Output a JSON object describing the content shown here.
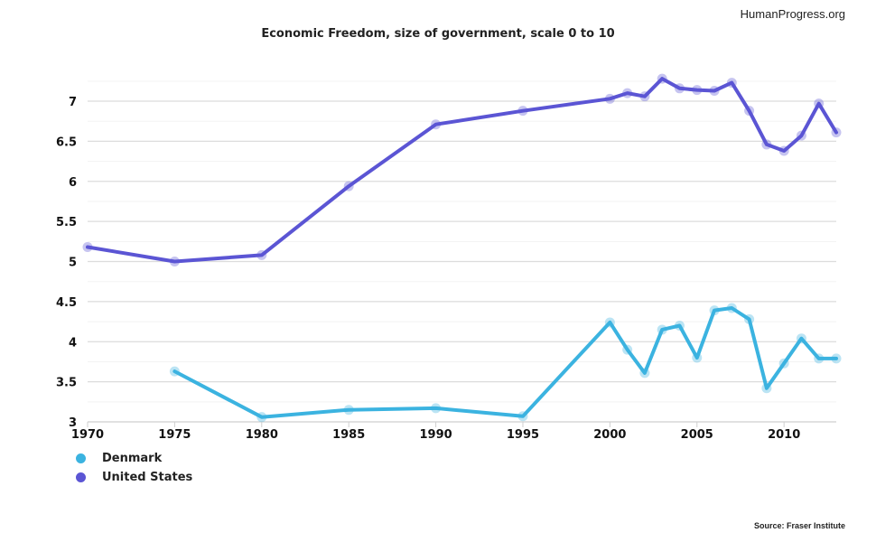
{
  "header": {
    "brand": "HumanProgress.org"
  },
  "footer": {
    "source": "Source: Fraser Institute"
  },
  "chart_data": {
    "type": "line",
    "title": "Economic Freedom, size of government, scale 0 to 10",
    "xlabel": "",
    "ylabel": "",
    "xlim": [
      1970,
      2013
    ],
    "ylim": [
      3,
      7.35
    ],
    "x_ticks": [
      "1970",
      "1975",
      "1980",
      "1985",
      "1990",
      "1995",
      "2000",
      "2005",
      "2010"
    ],
    "y_ticks": [
      "3",
      "3.5",
      "4",
      "4.5",
      "5",
      "5.5",
      "6",
      "6.5",
      "7"
    ],
    "grid": true,
    "legend_position": "bottom-left",
    "series": [
      {
        "name": "Denmark",
        "color": "#3bb3e0",
        "x": [
          1975,
          1980,
          1985,
          1990,
          1995,
          2000,
          2001,
          2002,
          2003,
          2004,
          2005,
          2006,
          2007,
          2008,
          2009,
          2010,
          2011,
          2012,
          2013
        ],
        "values": [
          3.63,
          3.06,
          3.15,
          3.17,
          3.07,
          4.24,
          3.9,
          3.61,
          4.15,
          4.2,
          3.8,
          4.39,
          4.42,
          4.28,
          3.42,
          3.73,
          4.04,
          3.79,
          3.79
        ]
      },
      {
        "name": "United States",
        "color": "#5b55d4",
        "x": [
          1970,
          1975,
          1980,
          1985,
          1990,
          1995,
          2000,
          2001,
          2002,
          2003,
          2004,
          2005,
          2006,
          2007,
          2008,
          2009,
          2010,
          2011,
          2012,
          2013
        ],
        "values": [
          5.18,
          5.0,
          5.08,
          5.94,
          6.71,
          6.88,
          7.03,
          7.1,
          7.06,
          7.28,
          7.16,
          7.14,
          7.13,
          7.23,
          6.88,
          6.46,
          6.38,
          6.57,
          6.97,
          6.61
        ]
      }
    ]
  }
}
